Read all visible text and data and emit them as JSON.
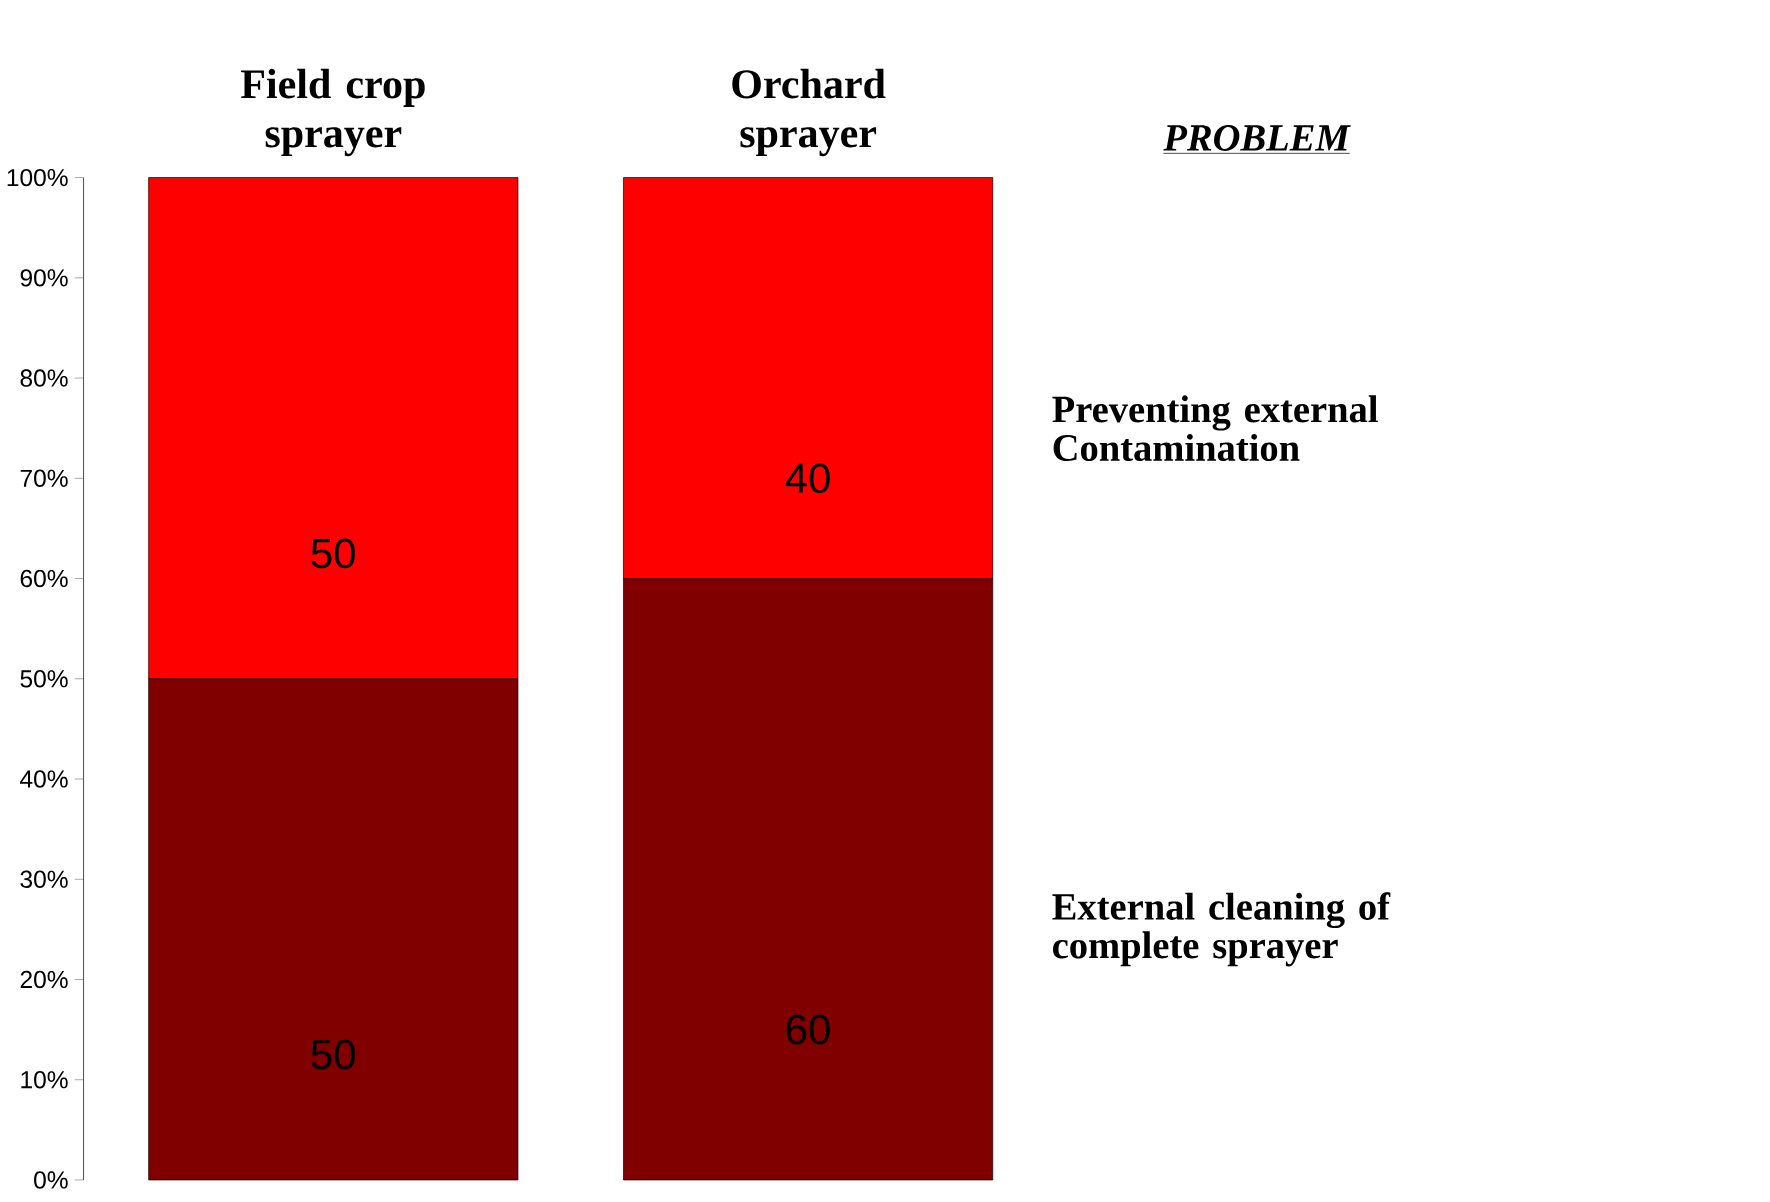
{
  "chart_data": {
    "type": "bar",
    "stacked": true,
    "data_labels": true,
    "legend": "right",
    "legend_title": "PROBLEM",
    "categories": [
      "Field crop sprayer",
      "Orchard sprayer"
    ],
    "series": [
      {
        "name": "External cleaning of complete sprayer",
        "color": "#800000",
        "values": [
          50,
          60
        ]
      },
      {
        "name": "Preventing external Contamination",
        "color": "#ff0000",
        "values": [
          50,
          40
        ]
      }
    ],
    "ylim": [
      0,
      100
    ],
    "yticks": [
      {
        "value": 0,
        "label": "0%"
      },
      {
        "value": 10,
        "label": "10%"
      },
      {
        "value": 20,
        "label": "20%"
      },
      {
        "value": 30,
        "label": "30%"
      },
      {
        "value": 40,
        "label": "40%"
      },
      {
        "value": 50,
        "label": "50%"
      },
      {
        "value": 60,
        "label": "60%"
      },
      {
        "value": 70,
        "label": "70%"
      },
      {
        "value": 80,
        "label": "80%"
      },
      {
        "value": 90,
        "label": "90%"
      },
      {
        "value": 100,
        "label": "100%"
      }
    ]
  }
}
